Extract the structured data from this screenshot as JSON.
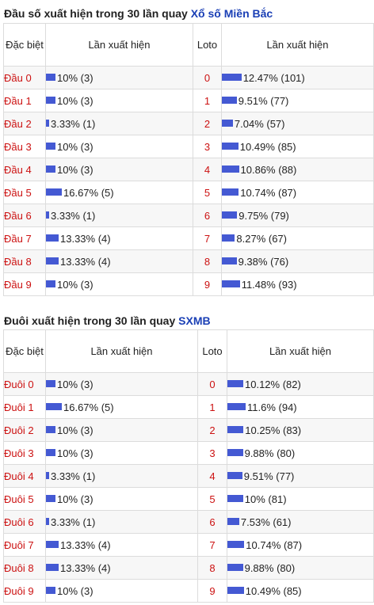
{
  "section1": {
    "title_prefix": "Đầu số xuất hiện trong 30 lần quay",
    "title_link": "Xổ số Miền Bắc",
    "headers": {
      "special": "Đặc biệt",
      "frequency": "Lần xuất hiện",
      "loto": "Loto",
      "loto_frequency": "Lần xuất hiện"
    },
    "rows": [
      {
        "label": "Đầu 0",
        "freq": "10% (3)",
        "freq_pct": 10,
        "loto": "0",
        "loto_freq": "12.47% (101)",
        "loto_pct": 12.47
      },
      {
        "label": "Đầu 1",
        "freq": "10% (3)",
        "freq_pct": 10,
        "loto": "1",
        "loto_freq": "9.51% (77)",
        "loto_pct": 9.51
      },
      {
        "label": "Đầu 2",
        "freq": "3.33% (1)",
        "freq_pct": 3.33,
        "loto": "2",
        "loto_freq": "7.04% (57)",
        "loto_pct": 7.04
      },
      {
        "label": "Đầu 3",
        "freq": "10% (3)",
        "freq_pct": 10,
        "loto": "3",
        "loto_freq": "10.49% (85)",
        "loto_pct": 10.49
      },
      {
        "label": "Đầu 4",
        "freq": "10% (3)",
        "freq_pct": 10,
        "loto": "4",
        "loto_freq": "10.86% (88)",
        "loto_pct": 10.86
      },
      {
        "label": "Đầu 5",
        "freq": "16.67% (5)",
        "freq_pct": 16.67,
        "loto": "5",
        "loto_freq": "10.74% (87)",
        "loto_pct": 10.74
      },
      {
        "label": "Đầu 6",
        "freq": "3.33% (1)",
        "freq_pct": 3.33,
        "loto": "6",
        "loto_freq": "9.75% (79)",
        "loto_pct": 9.75
      },
      {
        "label": "Đầu 7",
        "freq": "13.33% (4)",
        "freq_pct": 13.33,
        "loto": "7",
        "loto_freq": "8.27% (67)",
        "loto_pct": 8.27
      },
      {
        "label": "Đầu 8",
        "freq": "13.33% (4)",
        "freq_pct": 13.33,
        "loto": "8",
        "loto_freq": "9.38% (76)",
        "loto_pct": 9.38
      },
      {
        "label": "Đầu 9",
        "freq": "10% (3)",
        "freq_pct": 10,
        "loto": "9",
        "loto_freq": "11.48% (93)",
        "loto_pct": 11.48
      }
    ]
  },
  "section2": {
    "title_prefix": "Đuôi xuất hiện trong 30 lần quay",
    "title_link": "SXMB",
    "headers": {
      "special": "Đặc biệt",
      "frequency": "Lần xuất hiện",
      "loto": "Loto",
      "loto_frequency": "Lần xuất hiện"
    },
    "rows": [
      {
        "label": "Đuôi 0",
        "freq": "10% (3)",
        "freq_pct": 10,
        "loto": "0",
        "loto_freq": "10.12% (82)",
        "loto_pct": 10.12
      },
      {
        "label": "Đuôi 1",
        "freq": "16.67% (5)",
        "freq_pct": 16.67,
        "loto": "1",
        "loto_freq": "11.6% (94)",
        "loto_pct": 11.6
      },
      {
        "label": "Đuôi 2",
        "freq": "10% (3)",
        "freq_pct": 10,
        "loto": "2",
        "loto_freq": "10.25% (83)",
        "loto_pct": 10.25
      },
      {
        "label": "Đuôi 3",
        "freq": "10% (3)",
        "freq_pct": 10,
        "loto": "3",
        "loto_freq": "9.88% (80)",
        "loto_pct": 9.88
      },
      {
        "label": "Đuôi 4",
        "freq": "3.33% (1)",
        "freq_pct": 3.33,
        "loto": "4",
        "loto_freq": "9.51% (77)",
        "loto_pct": 9.51
      },
      {
        "label": "Đuôi 5",
        "freq": "10% (3)",
        "freq_pct": 10,
        "loto": "5",
        "loto_freq": "10% (81)",
        "loto_pct": 10
      },
      {
        "label": "Đuôi 6",
        "freq": "3.33% (1)",
        "freq_pct": 3.33,
        "loto": "6",
        "loto_freq": "7.53% (61)",
        "loto_pct": 7.53
      },
      {
        "label": "Đuôi 7",
        "freq": "13.33% (4)",
        "freq_pct": 13.33,
        "loto": "7",
        "loto_freq": "10.74% (87)",
        "loto_pct": 10.74
      },
      {
        "label": "Đuôi 8",
        "freq": "13.33% (4)",
        "freq_pct": 13.33,
        "loto": "8",
        "loto_freq": "9.88% (80)",
        "loto_pct": 9.88
      },
      {
        "label": "Đuôi 9",
        "freq": "10% (3)",
        "freq_pct": 10,
        "loto": "9",
        "loto_freq": "10.49% (85)",
        "loto_pct": 10.49
      }
    ]
  },
  "colors": {
    "bar": "#4459d3",
    "label_red": "#cc1111",
    "link_blue": "#1a3fb5"
  }
}
